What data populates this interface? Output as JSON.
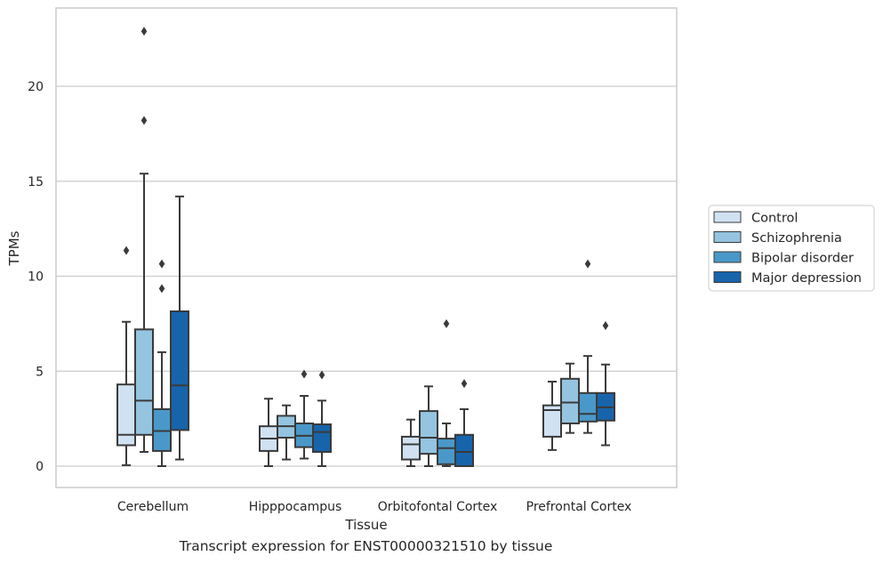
{
  "caption": "Transcript expression for ENST00000321510 by tissue",
  "chart_data": {
    "type": "boxplot",
    "xlabel": "Tissue",
    "ylabel": "TPMs",
    "ylim": [
      -1.1,
      24.2
    ],
    "yticks": [
      0,
      5,
      10,
      15,
      20
    ],
    "grid": true,
    "legend_position": "right",
    "categories": [
      "Cerebellum",
      "Hipppocampus",
      "Orbitofontal Cortex",
      "Prefrontal Cortex"
    ],
    "series": [
      {
        "name": "Control",
        "color": "#d0e1f2",
        "boxes": [
          {
            "whislo": 0.05,
            "q1": 1.1,
            "med": 1.65,
            "q3": 4.3,
            "whishi": 7.6,
            "fliers": [
              11.35
            ]
          },
          {
            "whislo": 0.0,
            "q1": 0.8,
            "med": 1.45,
            "q3": 2.1,
            "whishi": 3.55,
            "fliers": []
          },
          {
            "whislo": 0.0,
            "q1": 0.35,
            "med": 1.15,
            "q3": 1.55,
            "whishi": 2.45,
            "fliers": []
          },
          {
            "whislo": 0.85,
            "q1": 1.55,
            "med": 2.95,
            "q3": 3.2,
            "whishi": 4.45,
            "fliers": []
          }
        ]
      },
      {
        "name": "Schizophrenia",
        "color": "#94c4df",
        "boxes": [
          {
            "whislo": 0.75,
            "q1": 1.65,
            "med": 3.45,
            "q3": 7.2,
            "whishi": 15.4,
            "fliers": [
              18.2,
              22.9
            ]
          },
          {
            "whislo": 0.35,
            "q1": 1.5,
            "med": 2.1,
            "q3": 2.65,
            "whishi": 3.2,
            "fliers": []
          },
          {
            "whislo": 0.0,
            "q1": 0.65,
            "med": 1.5,
            "q3": 2.9,
            "whishi": 4.2,
            "fliers": []
          },
          {
            "whislo": 1.75,
            "q1": 2.25,
            "med": 3.35,
            "q3": 4.6,
            "whishi": 5.4,
            "fliers": []
          }
        ]
      },
      {
        "name": "Bipolar disorder",
        "color": "#4a98c9",
        "boxes": [
          {
            "whislo": 0.0,
            "q1": 0.8,
            "med": 1.85,
            "q3": 3.0,
            "whishi": 6.0,
            "fliers": [
              9.35,
              10.65
            ]
          },
          {
            "whislo": 0.4,
            "q1": 1.0,
            "med": 1.6,
            "q3": 2.25,
            "whishi": 3.7,
            "fliers": [
              4.85
            ]
          },
          {
            "whislo": 0.0,
            "q1": 0.1,
            "med": 0.95,
            "q3": 1.45,
            "whishi": 2.25,
            "fliers": [
              7.5
            ]
          },
          {
            "whislo": 1.75,
            "q1": 2.35,
            "med": 2.75,
            "q3": 3.85,
            "whishi": 5.8,
            "fliers": [
              10.65
            ]
          }
        ]
      },
      {
        "name": "Major depression",
        "color": "#1764ab",
        "boxes": [
          {
            "whislo": 0.35,
            "q1": 1.9,
            "med": 4.25,
            "q3": 8.15,
            "whishi": 14.2,
            "fliers": []
          },
          {
            "whislo": 0.0,
            "q1": 0.75,
            "med": 1.8,
            "q3": 2.2,
            "whishi": 3.45,
            "fliers": [
              4.8
            ]
          },
          {
            "whislo": 0.0,
            "q1": 0.0,
            "med": 0.75,
            "q3": 1.65,
            "whishi": 3.0,
            "fliers": [
              4.35
            ]
          },
          {
            "whislo": 1.1,
            "q1": 2.4,
            "med": 3.1,
            "q3": 3.85,
            "whishi": 5.35,
            "fliers": [
              7.4
            ]
          }
        ]
      }
    ]
  }
}
